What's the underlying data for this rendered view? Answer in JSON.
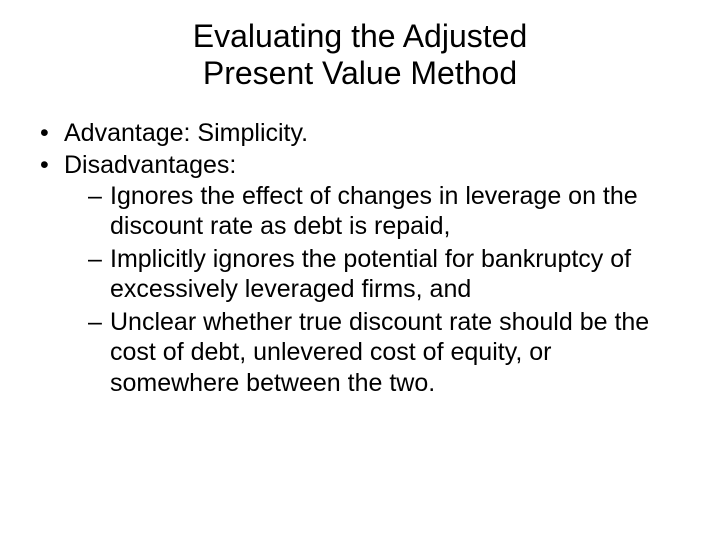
{
  "title_line1": "Evaluating the Adjusted",
  "title_line2": "Present Value Method",
  "bullets": {
    "b1": "Advantage: Simplicity.",
    "b2": "Disadvantages:",
    "sub": {
      "s1": "Ignores the effect of changes in leverage on the discount rate as debt is repaid,",
      "s2": "Implicitly ignores the potential for bankruptcy of excessively leveraged firms, and",
      "s3": "Unclear whether true discount rate should be the cost of debt, unlevered cost of equity, or somewhere between the two."
    }
  },
  "colors": {
    "background": "#ffffff",
    "text": "#000000"
  },
  "typography": {
    "title_fontsize": 32,
    "body_fontsize": 25,
    "font_family": "Arial"
  }
}
